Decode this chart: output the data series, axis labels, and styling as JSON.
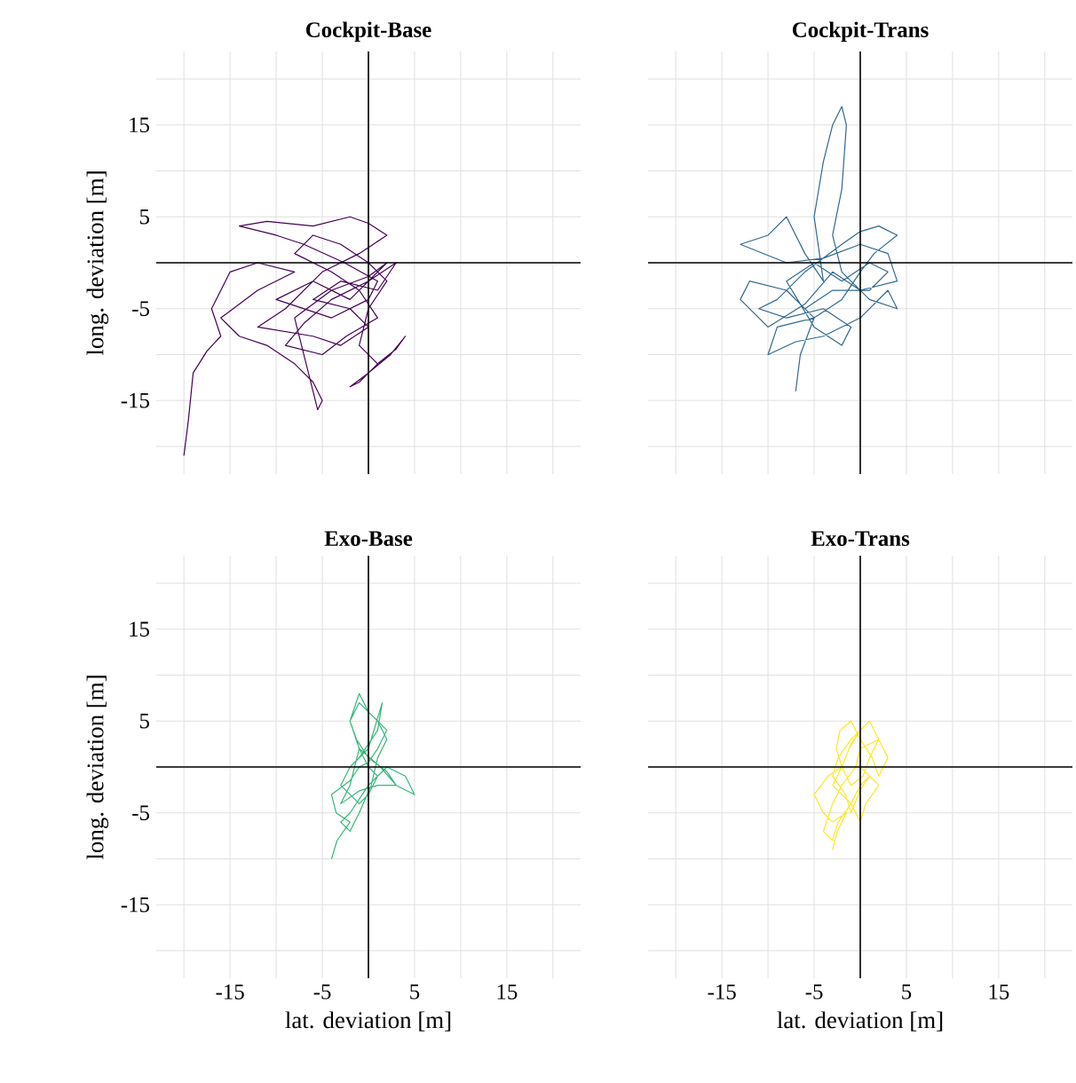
{
  "chart_data": [
    {
      "type": "line",
      "title": "Cockpit-Base",
      "ylabel": "long. deviation [m]",
      "tick_labels": "y",
      "grid": true,
      "marker": "none",
      "xlim": [
        -23,
        23
      ],
      "ylim": [
        -23,
        23
      ],
      "xticks": [
        {
          "value": -20,
          "label": null
        },
        -15,
        {
          "value": -10,
          "label": null
        },
        -5,
        {
          "value": 0,
          "label": null
        },
        5,
        {
          "value": 10,
          "label": null
        },
        15,
        {
          "value": 20,
          "label": null
        }
      ],
      "yticks": [
        {
          "value": -20,
          "label": null
        },
        -15,
        {
          "value": -10,
          "label": null
        },
        -5,
        {
          "value": 0,
          "label": null
        },
        5,
        {
          "value": 10,
          "label": null
        },
        15,
        {
          "value": 20,
          "label": null
        }
      ],
      "series": [
        {
          "color": "#440154",
          "x": [
            -20,
            -19.5,
            -19,
            -17.5,
            -16,
            -17,
            -15,
            -12,
            -8,
            -12,
            -16,
            -14,
            -11,
            -8,
            -6,
            -5,
            -5.5,
            -8,
            -4,
            0,
            2,
            -2,
            -6,
            -10,
            -4,
            0,
            1,
            -2.6,
            -7,
            -10,
            -14,
            -11,
            -6,
            -2,
            0,
            2,
            -1,
            -5,
            -9,
            -12,
            -6,
            -3,
            0,
            -2,
            -6,
            -3,
            1,
            3,
            0,
            -4,
            -7,
            -9,
            -5,
            -2.4,
            1,
            -1,
            -4,
            -8,
            -6,
            -3,
            0,
            2,
            0,
            -1,
            1,
            -1,
            -2,
            0,
            2.4,
            4,
            3,
            1
          ],
          "values": [
            -21,
            -17,
            -12,
            -9.6,
            -8,
            -5,
            -1,
            0,
            -1,
            -3,
            -6,
            -8,
            -9,
            -11,
            -13,
            -15,
            -16,
            -6,
            -3,
            -1.5,
            0,
            -4,
            -2,
            -4,
            -6,
            -4,
            -2,
            0,
            2,
            3,
            4,
            4.5,
            4,
            5,
            4.3,
            3,
            1,
            -1,
            -5,
            -7,
            -8,
            -9,
            -7,
            -5,
            -4,
            -2,
            -3,
            0,
            -2,
            -4,
            -6.6,
            -9,
            -10,
            -8,
            -6,
            -3,
            -1,
            1,
            3,
            2,
            0,
            -2,
            -5,
            -9,
            -11,
            -13,
            -13.5,
            -12,
            -10,
            -8,
            -9.4,
            -11
          ]
        }
      ]
    },
    {
      "type": "line",
      "title": "Cockpit-Trans",
      "tick_labels": false,
      "grid": true,
      "marker": "none",
      "xlim": [
        -23,
        23
      ],
      "ylim": [
        -23,
        23
      ],
      "xticks": [
        {
          "value": -20,
          "label": null
        },
        -15,
        {
          "value": -10,
          "label": null
        },
        -5,
        {
          "value": 0,
          "label": null
        },
        5,
        {
          "value": 10,
          "label": null
        },
        15,
        {
          "value": 20,
          "label": null
        }
      ],
      "yticks": [
        {
          "value": -20,
          "label": null
        },
        -15,
        {
          "value": -10,
          "label": null
        },
        -5,
        {
          "value": 0,
          "label": null
        },
        5,
        {
          "value": 10,
          "label": null
        },
        15,
        {
          "value": 20,
          "label": null
        }
      ],
      "series": [
        {
          "color": "#31688e",
          "x": [
            -7,
            -6.5,
            -5,
            -8,
            -12,
            -13,
            -10,
            -6,
            -3,
            0,
            4,
            3,
            0,
            -4,
            -8,
            -13,
            -10,
            -8,
            -6,
            -4,
            -5,
            -4,
            -3,
            -2,
            -1.5,
            -2,
            -3,
            -2,
            1,
            4,
            3,
            0,
            -4,
            -7,
            -10,
            -9,
            -5,
            -2,
            0,
            1.5,
            4,
            2,
            0,
            -2,
            -6,
            -9,
            -11,
            -8,
            -4,
            -1,
            -2,
            -5,
            -8,
            -5,
            -2,
            1,
            3,
            1,
            -3,
            -6
          ],
          "values": [
            -14,
            -10,
            -6,
            -3,
            -2,
            -4,
            -7,
            -4.5,
            -1,
            -3,
            -2,
            1,
            2,
            0.5,
            0,
            2,
            3,
            5,
            1,
            -2,
            5,
            11,
            15,
            17,
            15,
            8,
            3,
            -1,
            -4,
            -5,
            -3,
            -6,
            -8,
            -8.6,
            -10,
            -7,
            -6,
            -4,
            -1,
            1,
            3,
            4,
            3.4,
            2,
            -1,
            -4,
            -5,
            -6,
            -5,
            -7,
            -9,
            -7,
            -2,
            0,
            -2,
            0,
            -1,
            -3,
            -3,
            -5
          ]
        }
      ]
    },
    {
      "type": "line",
      "title": "Exo-Base",
      "xlabel": "lat. deviation [m]",
      "ylabel": "long. deviation [m]",
      "grid": true,
      "marker": "none",
      "xlim": [
        -23,
        23
      ],
      "ylim": [
        -23,
        23
      ],
      "xticks": [
        {
          "value": -20,
          "label": null
        },
        -15,
        {
          "value": -10,
          "label": null
        },
        -5,
        {
          "value": 0,
          "label": null
        },
        5,
        {
          "value": 10,
          "label": null
        },
        15,
        {
          "value": 20,
          "label": null
        }
      ],
      "yticks": [
        {
          "value": -20,
          "label": null
        },
        -15,
        {
          "value": -10,
          "label": null
        },
        -5,
        {
          "value": 0,
          "label": null
        },
        5,
        {
          "value": 10,
          "label": null
        },
        15,
        {
          "value": 20,
          "label": null
        }
      ],
      "series": [
        {
          "color": "#35b779",
          "x": [
            -4,
            -3.4,
            -2,
            -3.5,
            -4,
            -2,
            -1,
            0,
            1,
            2,
            0,
            -1,
            -2,
            -1.3,
            0,
            2,
            3,
            1.3,
            -1,
            -2,
            -3,
            -1,
            1,
            3,
            5,
            4,
            2,
            0,
            -2,
            -3,
            -2,
            -1,
            0.3,
            1,
            2,
            1,
            -1,
            -2,
            -1,
            0,
            1,
            0,
            -1,
            -3,
            -2,
            0,
            1.5,
            1,
            -1
          ],
          "values": [
            -10,
            -8,
            -6,
            -5,
            -3,
            -1.5,
            0,
            0.5,
            2,
            4,
            6,
            8,
            5,
            3,
            1,
            -0.5,
            -2,
            0,
            2,
            -2,
            -4,
            -2.6,
            -2,
            -2,
            -3,
            -1,
            0,
            -2,
            -5,
            -6,
            -7,
            -5,
            -2,
            1,
            3,
            5,
            7,
            5,
            2,
            0,
            -1,
            -3,
            -4,
            -2,
            0,
            2,
            7,
            4,
            1
          ]
        }
      ]
    },
    {
      "type": "line",
      "title": "Exo-Trans",
      "xlabel": "lat. deviation [m]",
      "tick_labels": "x",
      "grid": true,
      "marker": "none",
      "xlim": [
        -23,
        23
      ],
      "ylim": [
        -23,
        23
      ],
      "xticks": [
        {
          "value": -20,
          "label": null
        },
        -15,
        {
          "value": -10,
          "label": null
        },
        -5,
        {
          "value": 0,
          "label": null
        },
        5,
        {
          "value": 10,
          "label": null
        },
        15,
        {
          "value": 20,
          "label": null
        }
      ],
      "yticks": [
        {
          "value": -20,
          "label": null
        },
        -15,
        {
          "value": -10,
          "label": null
        },
        -5,
        {
          "value": 0,
          "label": null
        },
        5,
        {
          "value": 10,
          "label": null
        },
        15,
        {
          "value": 20,
          "label": null
        }
      ],
      "series": [
        {
          "color": "#fde725",
          "x": [
            -3,
            -2.5,
            -1.5,
            -3,
            -4,
            -5,
            -3.5,
            -2,
            -1.2,
            0,
            1,
            2,
            1,
            0.3,
            -1,
            -2,
            -2.6,
            -2.2,
            -1,
            0,
            1.3,
            2,
            3,
            2,
            0,
            -0.5,
            -2,
            -3,
            -4,
            -3,
            -2.4,
            -1,
            0,
            1,
            0,
            -1,
            -1.6,
            -3,
            -2.4,
            -1,
            0,
            -1,
            -2,
            -3,
            -1,
            0,
            0.6,
            2,
            0
          ],
          "values": [
            -9,
            -7,
            -5,
            -6,
            -5,
            -3,
            -1,
            0,
            2,
            4,
            5,
            3,
            1,
            -1,
            -2,
            0,
            2,
            4,
            5,
            3,
            1,
            -1,
            1,
            3,
            2,
            0,
            -2,
            -4,
            -7,
            -8,
            -6,
            -4,
            -2,
            -1,
            -2.5,
            -5,
            -3,
            -1,
            1,
            3,
            4,
            2.5,
            0,
            -2,
            -4,
            -6,
            -4,
            -2,
            0
          ]
        }
      ]
    }
  ]
}
